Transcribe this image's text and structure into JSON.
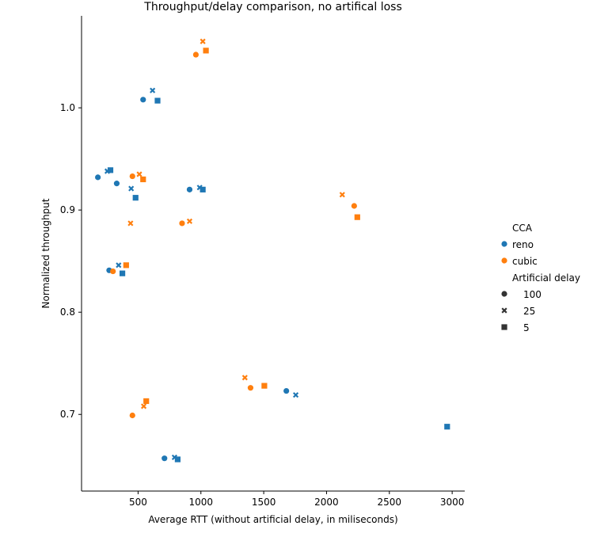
{
  "chart_data": {
    "type": "scatter",
    "title": "Throughput/delay comparison, no artifical loss",
    "xlabel": "Average RTT (without artificial delay, in miliseconds)",
    "ylabel": "Normalized throughput",
    "xlim": [
      50,
      3100
    ],
    "ylim": [
      0.625,
      1.09
    ],
    "xticks": [
      500,
      1000,
      1500,
      2000,
      2500,
      3000
    ],
    "xtick_labels": [
      "500",
      "1000",
      "1500",
      "2000",
      "2500",
      "3000"
    ],
    "yticks": [
      0.7,
      0.8,
      0.9,
      1.0
    ],
    "ytick_labels": [
      "0.7",
      "0.8",
      "0.9",
      "1.0"
    ],
    "grid": false,
    "legend_placement": "right",
    "hue_title": "CCA",
    "style_title": "Artificial delay",
    "hue_colors": {
      "reno": "#1f77b4",
      "cubic": "#ff7f0e"
    },
    "styles": [
      {
        "label": "100",
        "marker": "circle"
      },
      {
        "label": "25",
        "marker": "x"
      },
      {
        "label": "5",
        "marker": "square"
      }
    ],
    "series": [
      {
        "name": "reno",
        "points": [
          {
            "x": 540,
            "y": 1.008,
            "delay": "100"
          },
          {
            "x": 615,
            "y": 1.017,
            "delay": "25"
          },
          {
            "x": 655,
            "y": 1.007,
            "delay": "5"
          },
          {
            "x": 180,
            "y": 0.932,
            "delay": "100"
          },
          {
            "x": 255,
            "y": 0.938,
            "delay": "25"
          },
          {
            "x": 280,
            "y": 0.939,
            "delay": "5"
          },
          {
            "x": 330,
            "y": 0.926,
            "delay": "100"
          },
          {
            "x": 445,
            "y": 0.921,
            "delay": "25"
          },
          {
            "x": 480,
            "y": 0.912,
            "delay": "5"
          },
          {
            "x": 910,
            "y": 0.92,
            "delay": "100"
          },
          {
            "x": 990,
            "y": 0.922,
            "delay": "25"
          },
          {
            "x": 1015,
            "y": 0.92,
            "delay": "5"
          },
          {
            "x": 270,
            "y": 0.841,
            "delay": "100"
          },
          {
            "x": 345,
            "y": 0.846,
            "delay": "25"
          },
          {
            "x": 375,
            "y": 0.838,
            "delay": "5"
          },
          {
            "x": 710,
            "y": 0.657,
            "delay": "100"
          },
          {
            "x": 790,
            "y": 0.658,
            "delay": "25"
          },
          {
            "x": 815,
            "y": 0.656,
            "delay": "5"
          },
          {
            "x": 1680,
            "y": 0.723,
            "delay": "100"
          },
          {
            "x": 1755,
            "y": 0.719,
            "delay": "25"
          },
          {
            "x": 2960,
            "y": 0.688,
            "delay": "5"
          }
        ]
      },
      {
        "name": "cubic",
        "points": [
          {
            "x": 960,
            "y": 1.052,
            "delay": "100"
          },
          {
            "x": 1015,
            "y": 1.065,
            "delay": "25"
          },
          {
            "x": 1040,
            "y": 1.056,
            "delay": "5"
          },
          {
            "x": 455,
            "y": 0.933,
            "delay": "100"
          },
          {
            "x": 510,
            "y": 0.935,
            "delay": "25"
          },
          {
            "x": 540,
            "y": 0.93,
            "delay": "5"
          },
          {
            "x": 850,
            "y": 0.887,
            "delay": "100"
          },
          {
            "x": 440,
            "y": 0.887,
            "delay": "25"
          },
          {
            "x": 910,
            "y": 0.889,
            "delay": "25"
          },
          {
            "x": 300,
            "y": 0.84,
            "delay": "100"
          },
          {
            "x": 405,
            "y": 0.846,
            "delay": "5"
          },
          {
            "x": 455,
            "y": 0.699,
            "delay": "100"
          },
          {
            "x": 545,
            "y": 0.708,
            "delay": "25"
          },
          {
            "x": 565,
            "y": 0.713,
            "delay": "5"
          },
          {
            "x": 1395,
            "y": 0.726,
            "delay": "100"
          },
          {
            "x": 1350,
            "y": 0.736,
            "delay": "25"
          },
          {
            "x": 1505,
            "y": 0.728,
            "delay": "5"
          },
          {
            "x": 2220,
            "y": 0.904,
            "delay": "100"
          },
          {
            "x": 2125,
            "y": 0.915,
            "delay": "25"
          },
          {
            "x": 2245,
            "y": 0.893,
            "delay": "5"
          }
        ]
      }
    ]
  }
}
